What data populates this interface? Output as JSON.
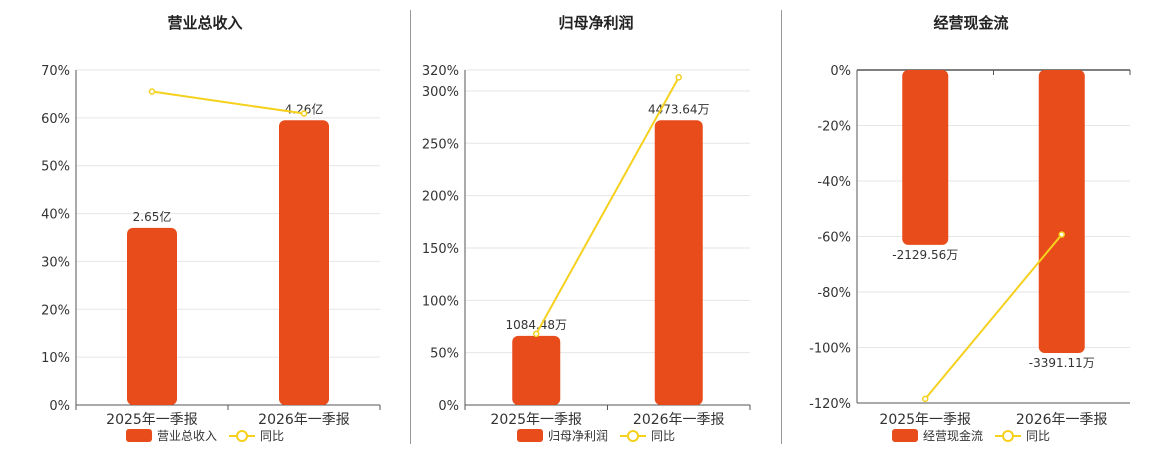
{
  "colors": {
    "bar": "#e84c1b",
    "line": "#f5d11e",
    "grid": "#e6e6e6",
    "axis": "#555555"
  },
  "chart_data": [
    {
      "type": "bar",
      "title": "营业总收入",
      "categories": [
        "2025年一季报",
        "2026年一季报"
      ],
      "bar_series": {
        "name": "营业总收入",
        "values": [
          37.0,
          59.5
        ],
        "labels": [
          "2.65亿",
          "4.26亿"
        ]
      },
      "line_series": {
        "name": "同比",
        "values": [
          65.5,
          60.9
        ]
      },
      "ylim": [
        0,
        70
      ],
      "ticks": [
        "0%",
        "10%",
        "20%",
        "30%",
        "40%",
        "50%",
        "60%",
        "70%"
      ],
      "tick_values": [
        0,
        10,
        20,
        30,
        40,
        50,
        60,
        70
      ],
      "grid": true,
      "legend": "bottom-center"
    },
    {
      "type": "bar",
      "title": "归母净利润",
      "categories": [
        "2025年一季报",
        "2026年一季报"
      ],
      "bar_series": {
        "name": "归母净利润",
        "values": [
          66,
          272
        ],
        "labels": [
          "1084.48万",
          "4473.64万"
        ]
      },
      "line_series": {
        "name": "同比",
        "values": [
          68,
          313
        ]
      },
      "ylim": [
        0,
        320
      ],
      "ticks": [
        "0%",
        "50%",
        "100%",
        "150%",
        "200%",
        "250%",
        "300%",
        "320%"
      ],
      "tick_values": [
        0,
        50,
        100,
        150,
        200,
        250,
        300,
        320
      ],
      "grid": true,
      "legend": "bottom-center"
    },
    {
      "type": "bar",
      "title": "经营现金流",
      "categories": [
        "2025年一季报",
        "2026年一季报"
      ],
      "bar_series": {
        "name": "经营现金流",
        "values": [
          -63,
          -102
        ],
        "labels": [
          "-2129.56万",
          "-3391.11万"
        ]
      },
      "line_series": {
        "name": "同比",
        "values": [
          -118.5,
          -59.3
        ]
      },
      "ylim": [
        -120,
        0
      ],
      "ticks": [
        "0%",
        "-20%",
        "-40%",
        "-60%",
        "-80%",
        "-100%",
        "-120%"
      ],
      "tick_values": [
        0,
        -20,
        -40,
        -60,
        -80,
        -100,
        -120
      ],
      "grid": true,
      "legend": "bottom-center"
    }
  ]
}
